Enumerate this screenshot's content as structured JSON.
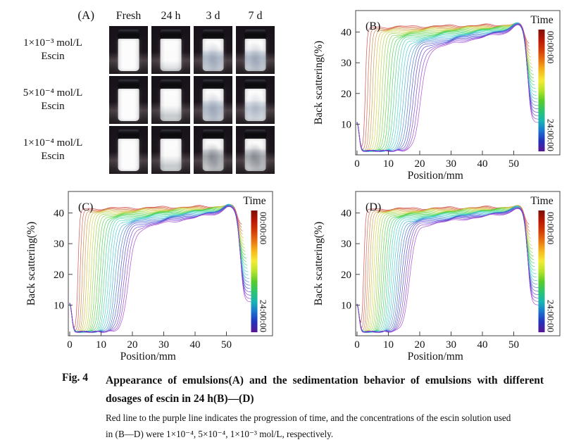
{
  "panelA": {
    "label": "(A)",
    "column_headers": [
      "Fresh",
      "24 h",
      "3 d",
      "7 d"
    ],
    "rows": [
      {
        "label": [
          "1×10⁻³ mol/L",
          "Escin"
        ],
        "states": [
          "full",
          "slight",
          "partial",
          "partial"
        ]
      },
      {
        "label": [
          "5×10⁻⁴ mol/L",
          "Escin"
        ],
        "states": [
          "full",
          "slight2",
          "partial",
          "partial2"
        ]
      },
      {
        "label": [
          "1×10⁻⁴ mol/L",
          "Escin"
        ],
        "states": [
          "full",
          "slight2",
          "clear",
          "clear"
        ]
      }
    ]
  },
  "caption": {
    "fig_label": "Fig. 4",
    "title": "Appearance of emulsions(A) and the sedimentation behavior of emulsions with different dosages of escin in 24 h(B)—(D)",
    "note_line1": "Red line to the purple line indicates the progression of time, and the concentrations of the escin solution used",
    "note_line2": "in (B—D) were 1×10⁻⁴, 5×10⁻⁴, 1×10⁻³ mol/L, respectively."
  },
  "colorbar_gradient": [
    "#7d0d06",
    "#b81703",
    "#d33a05",
    "#e97311",
    "#f7b71c",
    "#f5ea33",
    "#b5e42a",
    "#59cb2a",
    "#2cc46e",
    "#17b5b2",
    "#1c72cf",
    "#2330bb",
    "#5a1693"
  ],
  "chart_data": [
    {
      "type": "line",
      "panel": "(B)",
      "xlabel": "Position/mm",
      "ylabel": "Back scattering(%)",
      "xlim": [
        0,
        58
      ],
      "ylim": [
        0,
        47
      ],
      "xticks": [
        0,
        10,
        20,
        30,
        40,
        50
      ],
      "yticks": [
        10,
        20,
        30,
        40
      ],
      "n_curves": 24,
      "series_description": "Back-scattering profiles scanned repeatedly over 24 h; color encodes elapsed time from red (00:00:00) to purple (24:00:00)",
      "colorbar": {
        "title": "Time",
        "top_label": "00:00:00",
        "bottom_label": "24:00:00"
      },
      "baseline_pct": 1.3,
      "left_spike": {
        "position_mm": 0,
        "backscattering_pct": 10.5
      },
      "clarification_front_mm": {
        "first": 2,
        "last": 18
      },
      "plateau_backscattering_pct": {
        "first": 41.5,
        "last": 34
      },
      "value_at_50mm_pct": {
        "first": 42.4,
        "last": 40.2
      },
      "peak_pct": 43,
      "peak_position_mm": 51.5,
      "meniscus_drop_start_mm": 54,
      "tail_end": {
        "position_mm": 57,
        "backscattering_pct": 10.5
      }
    },
    {
      "type": "line",
      "panel": "(C)",
      "xlabel": "Position/mm",
      "ylabel": "Back scattering(%)",
      "xlim": [
        0,
        58
      ],
      "ylim": [
        0,
        47
      ],
      "xticks": [
        0,
        10,
        20,
        30,
        40,
        50
      ],
      "yticks": [
        10,
        20,
        30,
        40
      ],
      "n_curves": 24,
      "series_description": "Back-scattering profiles over 24 h for 5×10⁻⁴ mol/L escin; clarification front migrates from ~2 mm to ~16.5 mm",
      "colorbar": {
        "title": "Time",
        "top_label": "00:00:00",
        "bottom_label": "24:00:00"
      },
      "baseline_pct": 1.3,
      "left_spike": {
        "position_mm": 0,
        "backscattering_pct": 10.5
      },
      "clarification_front_mm": {
        "first": 2,
        "last": 16.5
      },
      "plateau_backscattering_pct": {
        "first": 41.3,
        "last": 34.5
      },
      "value_at_50mm_pct": {
        "first": 42.2,
        "last": 40.2
      },
      "peak_pct": 42.6,
      "peak_position_mm": 51,
      "meniscus_drop_start_mm": 54,
      "tail_end": {
        "position_mm": 56.5,
        "backscattering_pct": 11
      }
    },
    {
      "type": "line",
      "panel": "(D)",
      "xlabel": "Position/mm",
      "ylabel": "Back scattering(%)",
      "xlim": [
        0,
        58
      ],
      "ylim": [
        0,
        47
      ],
      "xticks": [
        0,
        10,
        20,
        30,
        40,
        50
      ],
      "yticks": [
        10,
        20,
        30,
        40
      ],
      "n_curves": 24,
      "series_description": "Back-scattering profiles over 24 h for 1×10⁻³ mol/L escin; clarification front migrates from ~1.5 mm to ~14.5 mm",
      "colorbar": {
        "title": "Time",
        "top_label": "00:00:00",
        "bottom_label": "24:00:00"
      },
      "baseline_pct": 1.3,
      "left_spike": {
        "position_mm": 0,
        "backscattering_pct": 10.2
      },
      "clarification_front_mm": {
        "first": 1.5,
        "last": 14.5
      },
      "plateau_backscattering_pct": {
        "first": 41.2,
        "last": 35.5
      },
      "value_at_50mm_pct": {
        "first": 42,
        "last": 40
      },
      "peak_pct": 42.2,
      "peak_position_mm": 51.5,
      "meniscus_drop_start_mm": 54,
      "tail_end": {
        "position_mm": 57,
        "backscattering_pct": 10
      }
    }
  ]
}
